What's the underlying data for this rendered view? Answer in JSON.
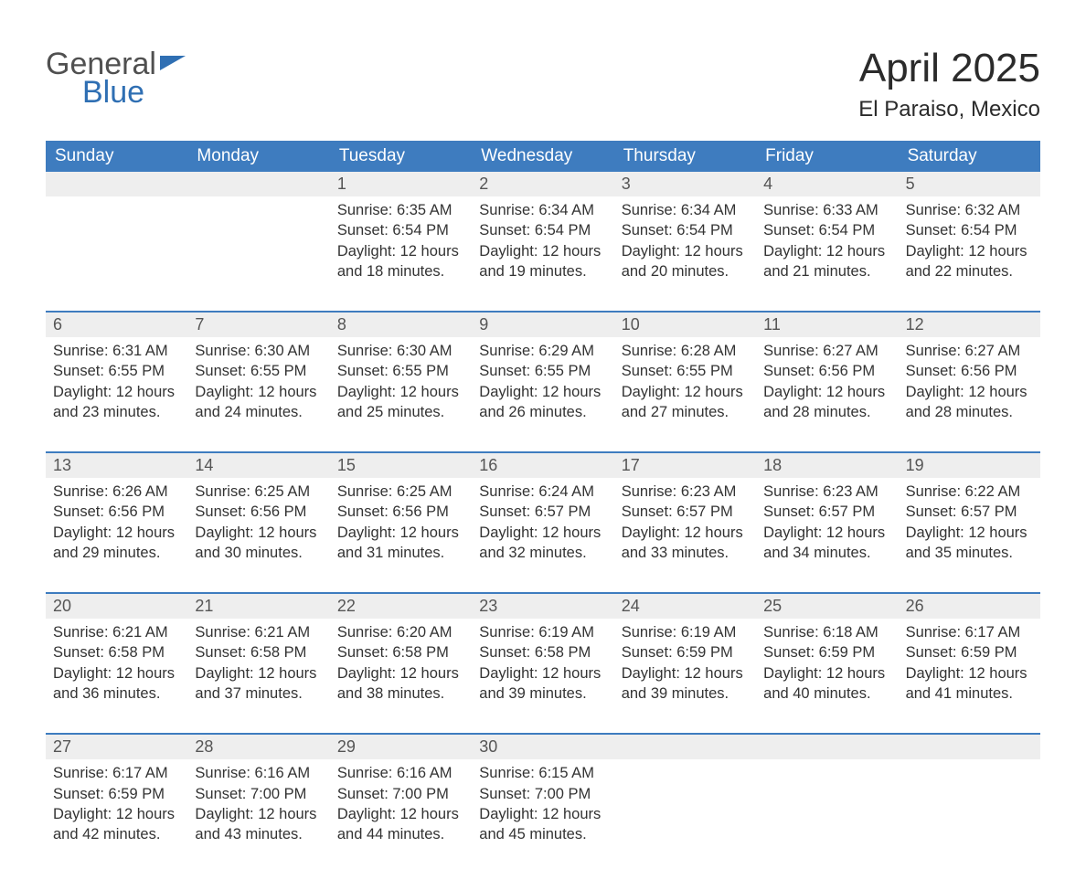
{
  "brand": {
    "general": "General",
    "blue": "Blue"
  },
  "header": {
    "month_title": "April 2025",
    "location": "El Paraiso, Mexico"
  },
  "colors": {
    "header_bg": "#3e7cbf",
    "header_text": "#ffffff",
    "daynum_bg": "#eeeeee",
    "border": "#3e7cbf",
    "text": "#333333",
    "brand_gray": "#505050",
    "brand_blue": "#2f6fb3"
  },
  "day_names": [
    "Sunday",
    "Monday",
    "Tuesday",
    "Wednesday",
    "Thursday",
    "Friday",
    "Saturday"
  ],
  "weeks": [
    {
      "nums": [
        "",
        "",
        "1",
        "2",
        "3",
        "4",
        "5"
      ],
      "cells": [
        {
          "sunrise": "",
          "sunset": "",
          "daylight": ""
        },
        {
          "sunrise": "",
          "sunset": "",
          "daylight": ""
        },
        {
          "sunrise": "Sunrise: 6:35 AM",
          "sunset": "Sunset: 6:54 PM",
          "daylight": "Daylight: 12 hours and 18 minutes."
        },
        {
          "sunrise": "Sunrise: 6:34 AM",
          "sunset": "Sunset: 6:54 PM",
          "daylight": "Daylight: 12 hours and 19 minutes."
        },
        {
          "sunrise": "Sunrise: 6:34 AM",
          "sunset": "Sunset: 6:54 PM",
          "daylight": "Daylight: 12 hours and 20 minutes."
        },
        {
          "sunrise": "Sunrise: 6:33 AM",
          "sunset": "Sunset: 6:54 PM",
          "daylight": "Daylight: 12 hours and 21 minutes."
        },
        {
          "sunrise": "Sunrise: 6:32 AM",
          "sunset": "Sunset: 6:54 PM",
          "daylight": "Daylight: 12 hours and 22 minutes."
        }
      ]
    },
    {
      "nums": [
        "6",
        "7",
        "8",
        "9",
        "10",
        "11",
        "12"
      ],
      "cells": [
        {
          "sunrise": "Sunrise: 6:31 AM",
          "sunset": "Sunset: 6:55 PM",
          "daylight": "Daylight: 12 hours and 23 minutes."
        },
        {
          "sunrise": "Sunrise: 6:30 AM",
          "sunset": "Sunset: 6:55 PM",
          "daylight": "Daylight: 12 hours and 24 minutes."
        },
        {
          "sunrise": "Sunrise: 6:30 AM",
          "sunset": "Sunset: 6:55 PM",
          "daylight": "Daylight: 12 hours and 25 minutes."
        },
        {
          "sunrise": "Sunrise: 6:29 AM",
          "sunset": "Sunset: 6:55 PM",
          "daylight": "Daylight: 12 hours and 26 minutes."
        },
        {
          "sunrise": "Sunrise: 6:28 AM",
          "sunset": "Sunset: 6:55 PM",
          "daylight": "Daylight: 12 hours and 27 minutes."
        },
        {
          "sunrise": "Sunrise: 6:27 AM",
          "sunset": "Sunset: 6:56 PM",
          "daylight": "Daylight: 12 hours and 28 minutes."
        },
        {
          "sunrise": "Sunrise: 6:27 AM",
          "sunset": "Sunset: 6:56 PM",
          "daylight": "Daylight: 12 hours and 28 minutes."
        }
      ]
    },
    {
      "nums": [
        "13",
        "14",
        "15",
        "16",
        "17",
        "18",
        "19"
      ],
      "cells": [
        {
          "sunrise": "Sunrise: 6:26 AM",
          "sunset": "Sunset: 6:56 PM",
          "daylight": "Daylight: 12 hours and 29 minutes."
        },
        {
          "sunrise": "Sunrise: 6:25 AM",
          "sunset": "Sunset: 6:56 PM",
          "daylight": "Daylight: 12 hours and 30 minutes."
        },
        {
          "sunrise": "Sunrise: 6:25 AM",
          "sunset": "Sunset: 6:56 PM",
          "daylight": "Daylight: 12 hours and 31 minutes."
        },
        {
          "sunrise": "Sunrise: 6:24 AM",
          "sunset": "Sunset: 6:57 PM",
          "daylight": "Daylight: 12 hours and 32 minutes."
        },
        {
          "sunrise": "Sunrise: 6:23 AM",
          "sunset": "Sunset: 6:57 PM",
          "daylight": "Daylight: 12 hours and 33 minutes."
        },
        {
          "sunrise": "Sunrise: 6:23 AM",
          "sunset": "Sunset: 6:57 PM",
          "daylight": "Daylight: 12 hours and 34 minutes."
        },
        {
          "sunrise": "Sunrise: 6:22 AM",
          "sunset": "Sunset: 6:57 PM",
          "daylight": "Daylight: 12 hours and 35 minutes."
        }
      ]
    },
    {
      "nums": [
        "20",
        "21",
        "22",
        "23",
        "24",
        "25",
        "26"
      ],
      "cells": [
        {
          "sunrise": "Sunrise: 6:21 AM",
          "sunset": "Sunset: 6:58 PM",
          "daylight": "Daylight: 12 hours and 36 minutes."
        },
        {
          "sunrise": "Sunrise: 6:21 AM",
          "sunset": "Sunset: 6:58 PM",
          "daylight": "Daylight: 12 hours and 37 minutes."
        },
        {
          "sunrise": "Sunrise: 6:20 AM",
          "sunset": "Sunset: 6:58 PM",
          "daylight": "Daylight: 12 hours and 38 minutes."
        },
        {
          "sunrise": "Sunrise: 6:19 AM",
          "sunset": "Sunset: 6:58 PM",
          "daylight": "Daylight: 12 hours and 39 minutes."
        },
        {
          "sunrise": "Sunrise: 6:19 AM",
          "sunset": "Sunset: 6:59 PM",
          "daylight": "Daylight: 12 hours and 39 minutes."
        },
        {
          "sunrise": "Sunrise: 6:18 AM",
          "sunset": "Sunset: 6:59 PM",
          "daylight": "Daylight: 12 hours and 40 minutes."
        },
        {
          "sunrise": "Sunrise: 6:17 AM",
          "sunset": "Sunset: 6:59 PM",
          "daylight": "Daylight: 12 hours and 41 minutes."
        }
      ]
    },
    {
      "nums": [
        "27",
        "28",
        "29",
        "30",
        "",
        "",
        ""
      ],
      "cells": [
        {
          "sunrise": "Sunrise: 6:17 AM",
          "sunset": "Sunset: 6:59 PM",
          "daylight": "Daylight: 12 hours and 42 minutes."
        },
        {
          "sunrise": "Sunrise: 6:16 AM",
          "sunset": "Sunset: 7:00 PM",
          "daylight": "Daylight: 12 hours and 43 minutes."
        },
        {
          "sunrise": "Sunrise: 6:16 AM",
          "sunset": "Sunset: 7:00 PM",
          "daylight": "Daylight: 12 hours and 44 minutes."
        },
        {
          "sunrise": "Sunrise: 6:15 AM",
          "sunset": "Sunset: 7:00 PM",
          "daylight": "Daylight: 12 hours and 45 minutes."
        },
        {
          "sunrise": "",
          "sunset": "",
          "daylight": ""
        },
        {
          "sunrise": "",
          "sunset": "",
          "daylight": ""
        },
        {
          "sunrise": "",
          "sunset": "",
          "daylight": ""
        }
      ]
    }
  ]
}
